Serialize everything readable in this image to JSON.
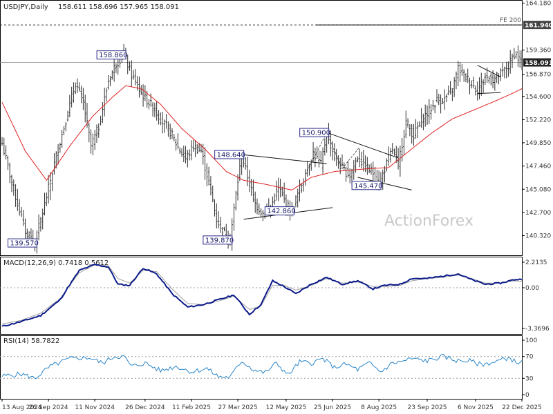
{
  "header": {
    "symbol": "USDJPY,Daily",
    "ohlc": "158.611 158.696 157.965 158.091"
  },
  "watermark": "ActionForex",
  "colors": {
    "bar": "#2f2f2f",
    "ma": "#e02020",
    "macd": "#0a1a8a",
    "signal": "#a0a0a0",
    "rsi": "#2a86c8",
    "level": "#888888",
    "label_border": "#2a2a8a"
  },
  "chart_data": [
    {
      "type": "ohlc-price",
      "title": "USDJPY,Daily",
      "subtitle": "158.611 158.696 157.965 158.091",
      "ylim": [
        138.2,
        164.18
      ],
      "y_ticks": [
        "164.180",
        "161.940",
        "159.360",
        "158.091",
        "156.870",
        "154.600",
        "152.220",
        "149.850",
        "147.460",
        "145.080",
        "142.700",
        "140.320"
      ],
      "x_ticks": [
        "13 Aug 2024",
        "26 Sep 2024",
        "11 Nov 2024",
        "26 Dec 2024",
        "11 Feb 2025",
        "27 Mar 2025",
        "12 May 2025",
        "25 Jun 2025",
        "8 Aug 2025",
        "23 Sep 2025",
        "6 Nov 2025",
        "22 Dec 2025"
      ],
      "close_anchors": [
        [
          0,
          149.8
        ],
        [
          6,
          145.0
        ],
        [
          12,
          140.8
        ],
        [
          17,
          139.57
        ],
        [
          22,
          143.5
        ],
        [
          28,
          148.5
        ],
        [
          33,
          152.2
        ],
        [
          38,
          156.0
        ],
        [
          42,
          154.0
        ],
        [
          46,
          149.5
        ],
        [
          50,
          151.5
        ],
        [
          55,
          156.2
        ],
        [
          59,
          158.0
        ],
        [
          63,
          158.86
        ],
        [
          67,
          156.8
        ],
        [
          71,
          155.2
        ],
        [
          75,
          154.2
        ],
        [
          79,
          153.3
        ],
        [
          83,
          152.0
        ],
        [
          87,
          151.0
        ],
        [
          91,
          149.4
        ],
        [
          95,
          148.2
        ],
        [
          99,
          149.5
        ],
        [
          103,
          149.0
        ],
        [
          107,
          145.8
        ],
        [
          111,
          142.0
        ],
        [
          115,
          140.6
        ],
        [
          118,
          139.87
        ],
        [
          121,
          144.6
        ],
        [
          124,
          148.64
        ],
        [
          127,
          146.4
        ],
        [
          131,
          143.6
        ],
        [
          135,
          142.6
        ],
        [
          139,
          143.2
        ],
        [
          143,
          145.3
        ],
        [
          147,
          143.5
        ],
        [
          150,
          142.86
        ],
        [
          153,
          144.6
        ],
        [
          157,
          146.6
        ],
        [
          161,
          148.8
        ],
        [
          165,
          147.6
        ],
        [
          168,
          150.9
        ],
        [
          172,
          148.4
        ],
        [
          176,
          147.2
        ],
        [
          180,
          146.5
        ],
        [
          184,
          148.4
        ],
        [
          188,
          147.4
        ],
        [
          192,
          146.8
        ],
        [
          195,
          145.47
        ],
        [
          198,
          147.2
        ],
        [
          202,
          149.2
        ],
        [
          205,
          147.6
        ],
        [
          209,
          152.0
        ],
        [
          213,
          150.6
        ],
        [
          217,
          152.2
        ],
        [
          221,
          153.1
        ],
        [
          225,
          154.2
        ],
        [
          229,
          154.3
        ],
        [
          233,
          155.3
        ],
        [
          236,
          157.5
        ],
        [
          240,
          156.6
        ],
        [
          243,
          155.9
        ],
        [
          246,
          155.2
        ],
        [
          250,
          156.6
        ],
        [
          254,
          156.3
        ],
        [
          258,
          156.9
        ],
        [
          262,
          157.7
        ],
        [
          265,
          159.0
        ],
        [
          269,
          158.09
        ]
      ],
      "ma_anchors": [
        [
          0,
          154.0
        ],
        [
          12,
          149.0
        ],
        [
          23,
          146.0
        ],
        [
          35,
          149.5
        ],
        [
          47,
          152.6
        ],
        [
          57,
          154.5
        ],
        [
          64,
          155.7
        ],
        [
          72,
          155.4
        ],
        [
          82,
          153.8
        ],
        [
          93,
          151.3
        ],
        [
          105,
          149.2
        ],
        [
          116,
          146.9
        ],
        [
          125,
          146.0
        ],
        [
          136,
          145.6
        ],
        [
          150,
          145.0
        ],
        [
          160,
          146.3
        ],
        [
          172,
          146.9
        ],
        [
          190,
          147.2
        ],
        [
          200,
          147.3
        ],
        [
          210,
          148.9
        ],
        [
          222,
          150.8
        ],
        [
          233,
          152.3
        ],
        [
          244,
          153.2
        ],
        [
          256,
          154.2
        ],
        [
          265,
          155.0
        ],
        [
          269,
          155.4
        ]
      ],
      "num_bars": 270,
      "annotations": [
        {
          "label": "158.860",
          "i": 63,
          "v": 158.86,
          "side": "left"
        },
        {
          "label": "139.570",
          "i": 17,
          "v": 139.57,
          "side": "left"
        },
        {
          "label": "148.640",
          "i": 124,
          "v": 148.64,
          "side": "left"
        },
        {
          "label": "139.870",
          "i": 118,
          "v": 139.87,
          "side": "left"
        },
        {
          "label": "142.860",
          "i": 150,
          "v": 142.86,
          "side": "left"
        },
        {
          "label": "150.900",
          "i": 168,
          "v": 150.9,
          "side": "left"
        },
        {
          "label": "145.470",
          "i": 195,
          "v": 145.47,
          "side": "left"
        }
      ],
      "fe_level": {
        "label": "FE 200",
        "value": 161.94
      },
      "current_price": 158.091,
      "trendlines": [
        {
          "from": [
            124,
            148.64
          ],
          "to": [
            168,
            147.7
          ]
        },
        {
          "from": [
            125,
            142.0
          ],
          "to": [
            171,
            143.2
          ]
        },
        {
          "from": [
            168,
            150.9
          ],
          "to": [
            205,
            148.3
          ]
        },
        {
          "from": [
            184,
            146.3
          ],
          "to": [
            212,
            145.0
          ]
        },
        {
          "from": [
            246,
            157.8
          ],
          "to": [
            258,
            156.6
          ]
        },
        {
          "from": [
            246,
            154.9
          ],
          "to": [
            258,
            155.0
          ]
        }
      ],
      "dashed_lines": [
        {
          "from": [
            157,
            146.6
          ],
          "to": [
            168,
            150.9
          ]
        },
        {
          "from": [
            168,
            150.9
          ],
          "to": [
            176,
            147.2
          ]
        },
        {
          "from": [
            176,
            147.2
          ],
          "to": [
            185,
            149.4
          ]
        }
      ]
    },
    {
      "type": "line",
      "title": "MACD(12,26,9) 0.7418 0.5612",
      "ylim": [
        -3.3696,
        2.2135
      ],
      "y_ticks": [
        "2.2135",
        "0.00",
        "-3.3696"
      ],
      "macd_anchors": [
        [
          0,
          -3.2
        ],
        [
          10,
          -2.8
        ],
        [
          20,
          -2.3
        ],
        [
          30,
          -1.0
        ],
        [
          40,
          1.5
        ],
        [
          48,
          2.0
        ],
        [
          55,
          1.8
        ],
        [
          60,
          0.3
        ],
        [
          66,
          0.2
        ],
        [
          73,
          1.7
        ],
        [
          80,
          1.2
        ],
        [
          88,
          -0.5
        ],
        [
          96,
          -1.6
        ],
        [
          104,
          -1.4
        ],
        [
          112,
          -1.0
        ],
        [
          120,
          -0.6
        ],
        [
          128,
          -2.2
        ],
        [
          134,
          -1.4
        ],
        [
          140,
          0.6
        ],
        [
          146,
          0.1
        ],
        [
          152,
          -0.5
        ],
        [
          160,
          0.3
        ],
        [
          168,
          0.9
        ],
        [
          176,
          0.3
        ],
        [
          184,
          0.6
        ],
        [
          192,
          -0.1
        ],
        [
          198,
          0.2
        ],
        [
          206,
          0.3
        ],
        [
          212,
          0.8
        ],
        [
          220,
          0.8
        ],
        [
          228,
          1.0
        ],
        [
          236,
          1.2
        ],
        [
          243,
          0.7
        ],
        [
          250,
          0.3
        ],
        [
          258,
          0.4
        ],
        [
          265,
          0.7
        ],
        [
          269,
          0.74
        ]
      ],
      "signal_anchors": [
        [
          0,
          -3.0
        ],
        [
          10,
          -2.7
        ],
        [
          20,
          -2.1
        ],
        [
          30,
          -0.9
        ],
        [
          40,
          1.3
        ],
        [
          48,
          2.0
        ],
        [
          55,
          1.9
        ],
        [
          60,
          0.8
        ],
        [
          66,
          0.4
        ],
        [
          73,
          1.5
        ],
        [
          80,
          1.4
        ],
        [
          88,
          -0.1
        ],
        [
          96,
          -1.3
        ],
        [
          104,
          -1.4
        ],
        [
          112,
          -1.1
        ],
        [
          120,
          -0.7
        ],
        [
          128,
          -1.8
        ],
        [
          134,
          -1.5
        ],
        [
          140,
          0.2
        ],
        [
          146,
          0.2
        ],
        [
          152,
          -0.2
        ],
        [
          160,
          0.2
        ],
        [
          168,
          0.8
        ],
        [
          176,
          0.4
        ],
        [
          184,
          0.5
        ],
        [
          192,
          0.1
        ],
        [
          198,
          0.1
        ],
        [
          206,
          0.2
        ],
        [
          212,
          0.6
        ],
        [
          220,
          0.8
        ],
        [
          228,
          0.9
        ],
        [
          236,
          1.1
        ],
        [
          243,
          0.8
        ],
        [
          250,
          0.4
        ],
        [
          258,
          0.4
        ],
        [
          265,
          0.6
        ],
        [
          269,
          0.56
        ]
      ]
    },
    {
      "type": "line",
      "title": "RSI(14) 58.7822",
      "ylim": [
        0,
        100
      ],
      "y_ticks": [
        "100",
        "70",
        "30",
        "0"
      ],
      "rsi_anchors": [
        [
          0,
          34
        ],
        [
          10,
          38
        ],
        [
          17,
          30
        ],
        [
          25,
          52
        ],
        [
          35,
          66
        ],
        [
          45,
          68
        ],
        [
          52,
          58
        ],
        [
          58,
          70
        ],
        [
          63,
          70
        ],
        [
          67,
          52
        ],
        [
          74,
          58
        ],
        [
          82,
          44
        ],
        [
          90,
          52
        ],
        [
          98,
          42
        ],
        [
          106,
          48
        ],
        [
          112,
          33
        ],
        [
          118,
          32
        ],
        [
          124,
          62
        ],
        [
          130,
          46
        ],
        [
          136,
          40
        ],
        [
          142,
          58
        ],
        [
          148,
          36
        ],
        [
          154,
          60
        ],
        [
          160,
          58
        ],
        [
          166,
          66
        ],
        [
          172,
          50
        ],
        [
          178,
          56
        ],
        [
          184,
          46
        ],
        [
          190,
          58
        ],
        [
          196,
          42
        ],
        [
          202,
          58
        ],
        [
          206,
          60
        ],
        [
          212,
          66
        ],
        [
          220,
          62
        ],
        [
          228,
          70
        ],
        [
          236,
          62
        ],
        [
          242,
          62
        ],
        [
          248,
          55
        ],
        [
          255,
          60
        ],
        [
          262,
          68
        ],
        [
          266,
          60
        ],
        [
          269,
          58.78
        ]
      ]
    }
  ]
}
